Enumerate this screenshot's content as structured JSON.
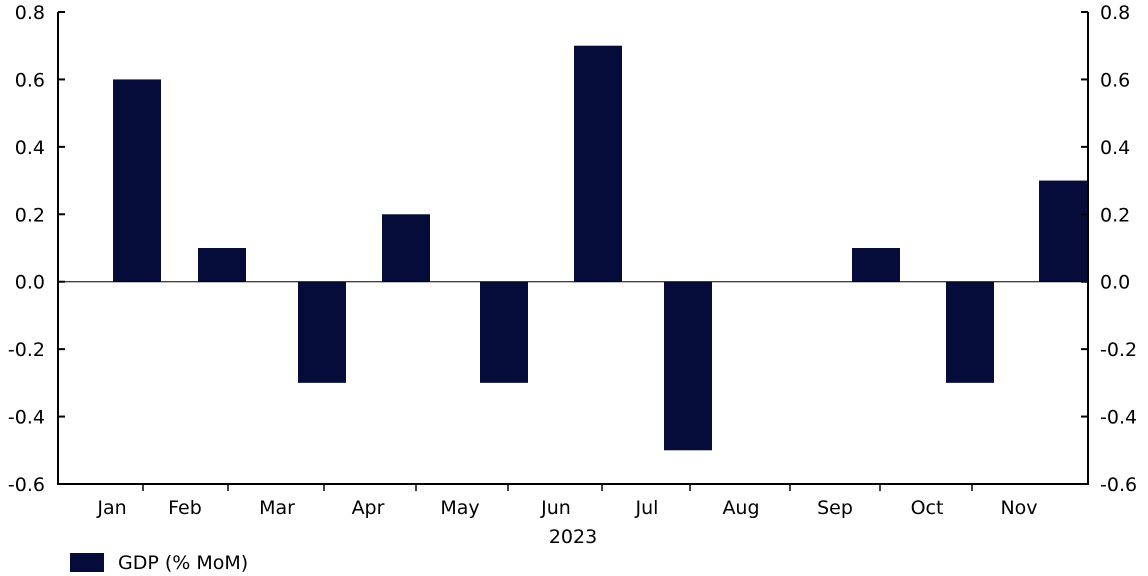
{
  "chart_data": {
    "type": "bar",
    "categories": [
      "Jan",
      "Feb",
      "Mar",
      "Apr",
      "May",
      "Jun",
      "Jul",
      "Aug",
      "Sep",
      "Oct",
      "Nov"
    ],
    "series": [
      {
        "name": "GDP (% MoM)",
        "values": [
          0.6,
          0.1,
          -0.3,
          0.2,
          -0.3,
          0.7,
          -0.5,
          0.0,
          0.1,
          -0.3,
          0.3
        ],
        "color": "#050c3a"
      }
    ],
    "xlabel": "2023",
    "ylim": [
      -0.6,
      0.8
    ],
    "yticks": [
      "0.8",
      "0.6",
      "0.4",
      "0.2",
      "0.0",
      "-0.2",
      "-0.4",
      "-0.6"
    ],
    "ytick_values": [
      0.8,
      0.6,
      0.4,
      0.2,
      0.0,
      -0.2,
      -0.4,
      -0.6
    ],
    "secondary_y_axis": true,
    "grid": false,
    "legend_position": "bottom-left"
  }
}
